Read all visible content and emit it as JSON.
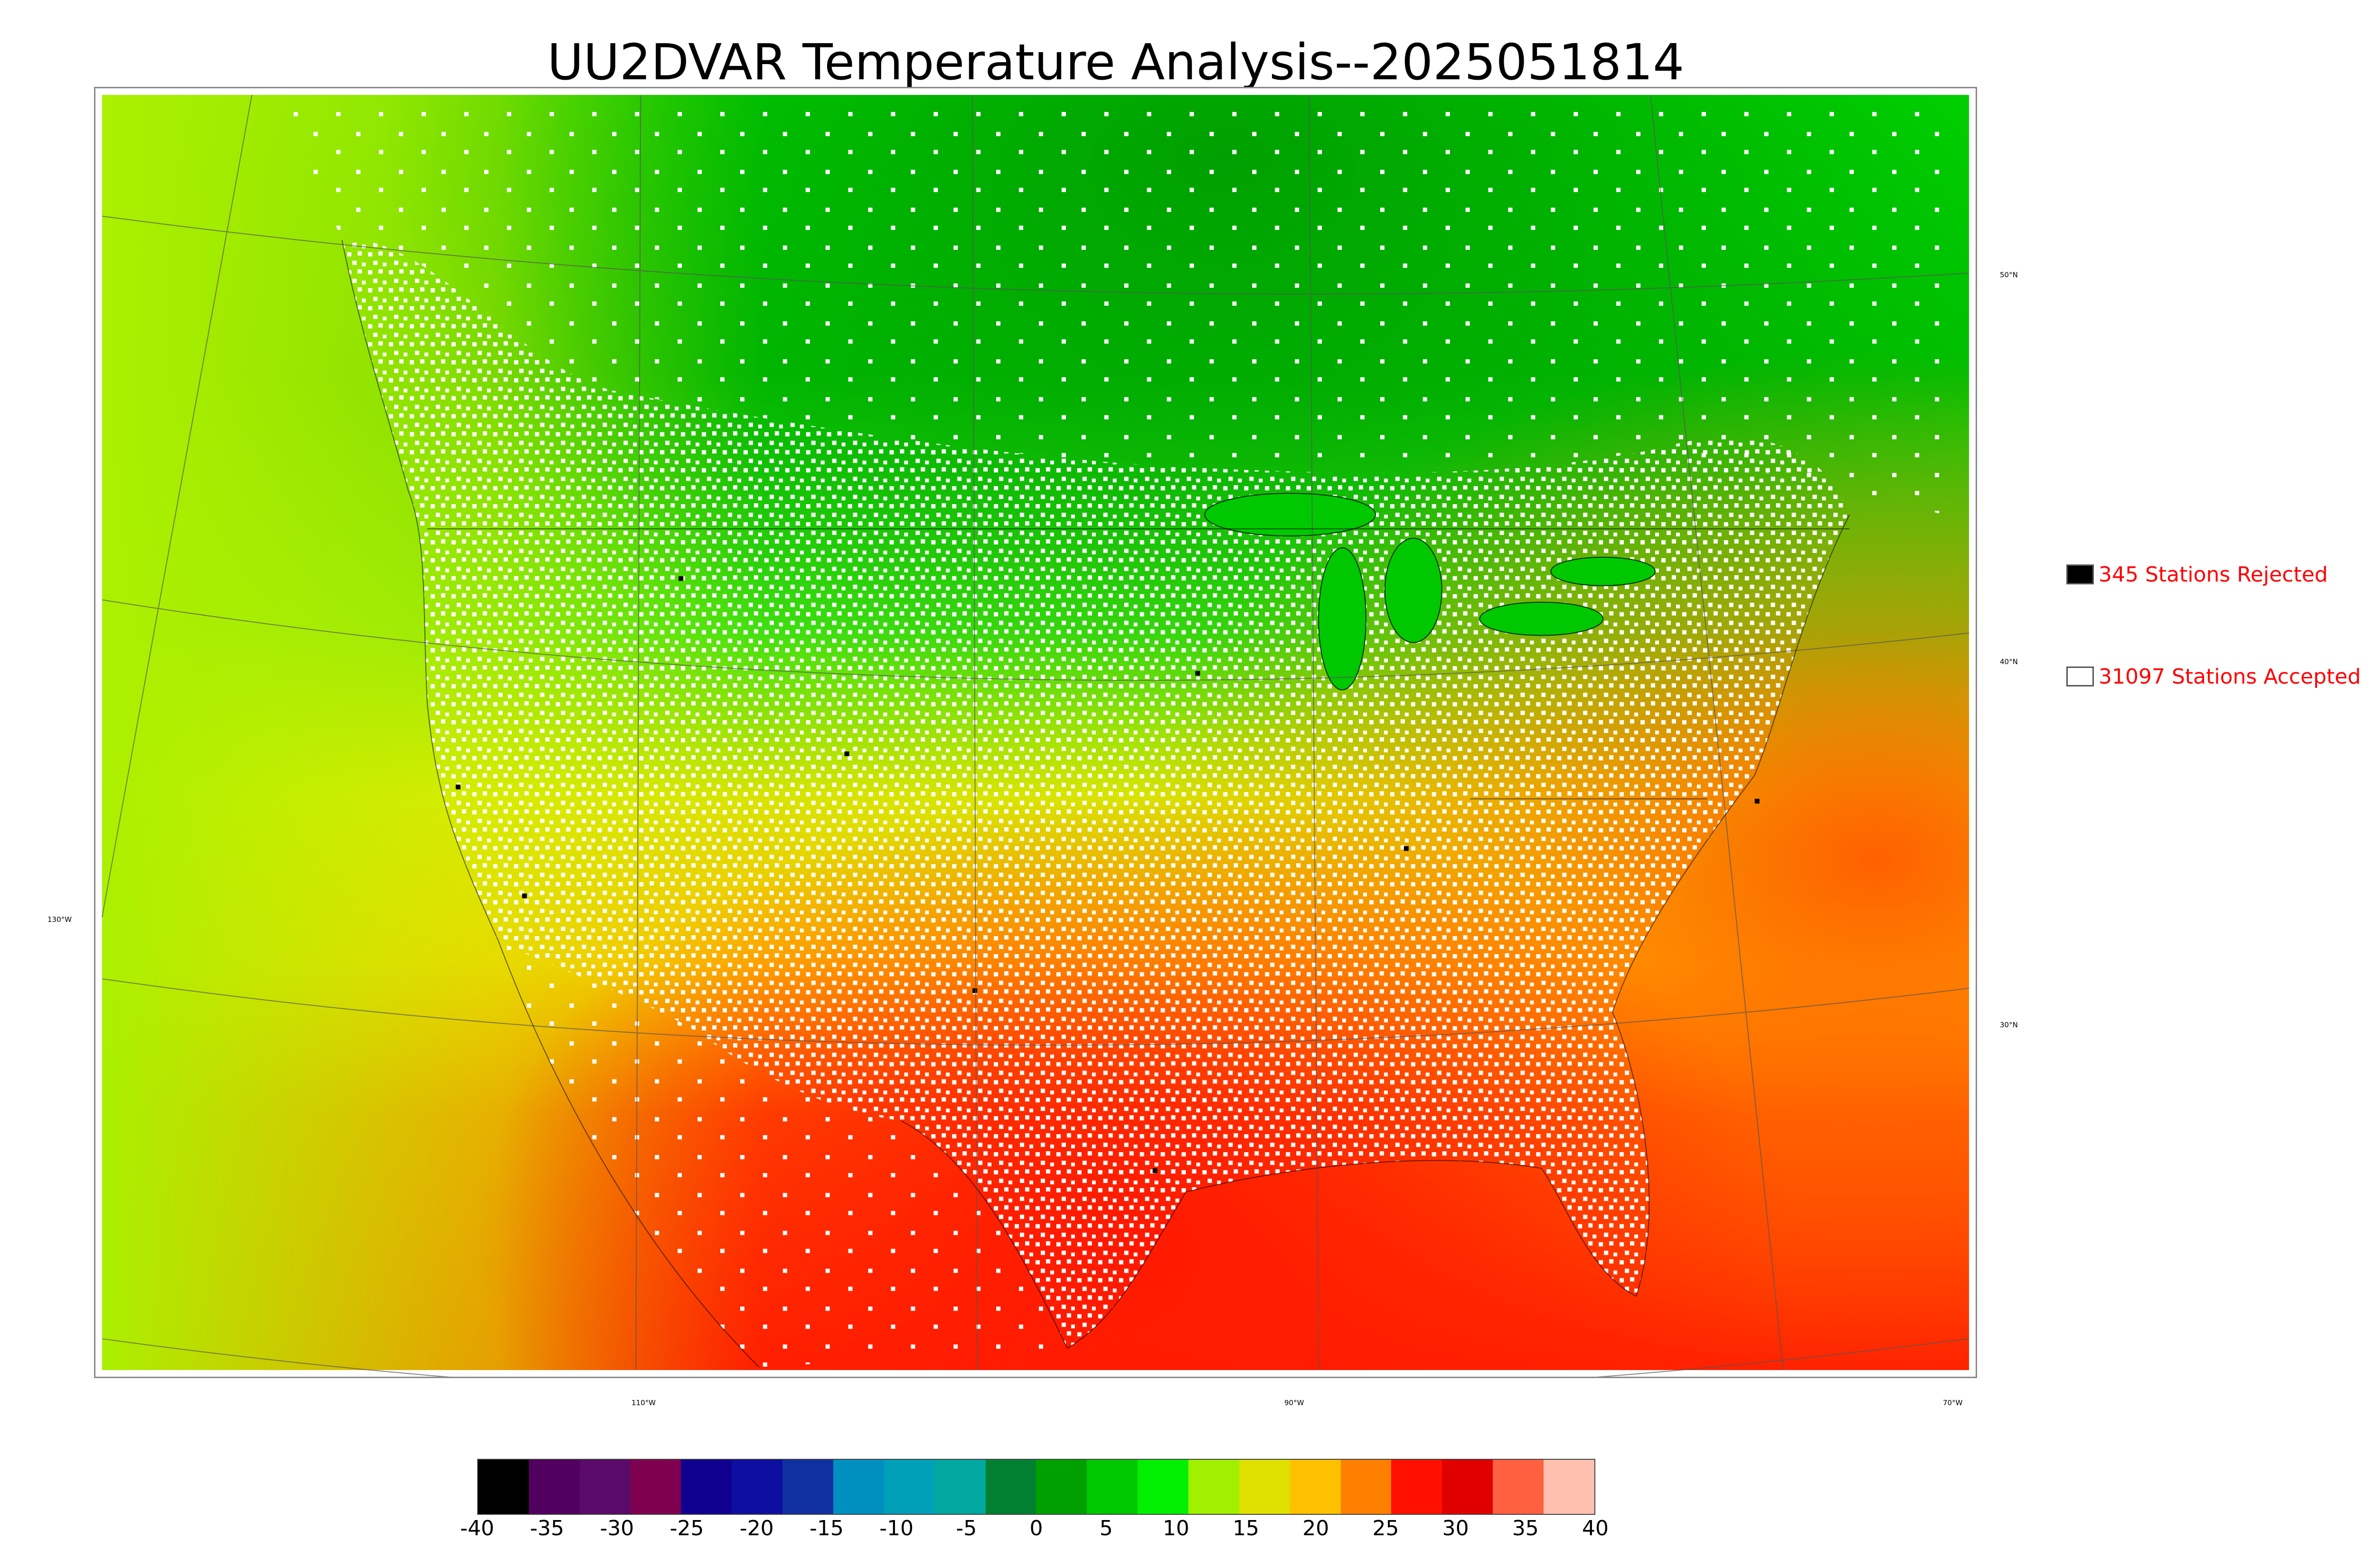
{
  "title": "UU2DVAR Temperature Analysis--2025051814",
  "map": {
    "latitude_labels": [
      "50°N",
      "40°N",
      "30°N"
    ],
    "longitude_labels": [
      "110°W",
      "90°W",
      "70°W"
    ],
    "west_label": "130°W"
  },
  "legend": {
    "rejected": {
      "label": "345 Stations Rejected",
      "swatch_color": "#000000"
    },
    "accepted": {
      "label": "31097 Stations Accepted",
      "swatch_color": "#ffffff"
    }
  },
  "colorbar": {
    "ticks": [
      "-40",
      "-35",
      "-30",
      "-25",
      "-20",
      "-15",
      "-10",
      "-5",
      "0",
      "5",
      "10",
      "15",
      "20",
      "25",
      "30",
      "35",
      "40"
    ],
    "range": [
      -40,
      40
    ],
    "colors": [
      "#000000",
      "#520060",
      "#5a0a68",
      "#800050",
      "#100090",
      "#0e0ea0",
      "#1030a0",
      "#0090c0",
      "#00a0b8",
      "#00a8a0",
      "#008030",
      "#00a000",
      "#00c800",
      "#00f000",
      "#a0f000",
      "#e0e000",
      "#ffc000",
      "#ff8000",
      "#ff1000",
      "#e00000",
      "#ff6040",
      "#ffc0b0"
    ]
  },
  "colors": {
    "accent_text": "#ff0000",
    "cold_ocean": "#ccf000",
    "warm_ocean": "#ff3300",
    "north_green": "#00c000"
  }
}
